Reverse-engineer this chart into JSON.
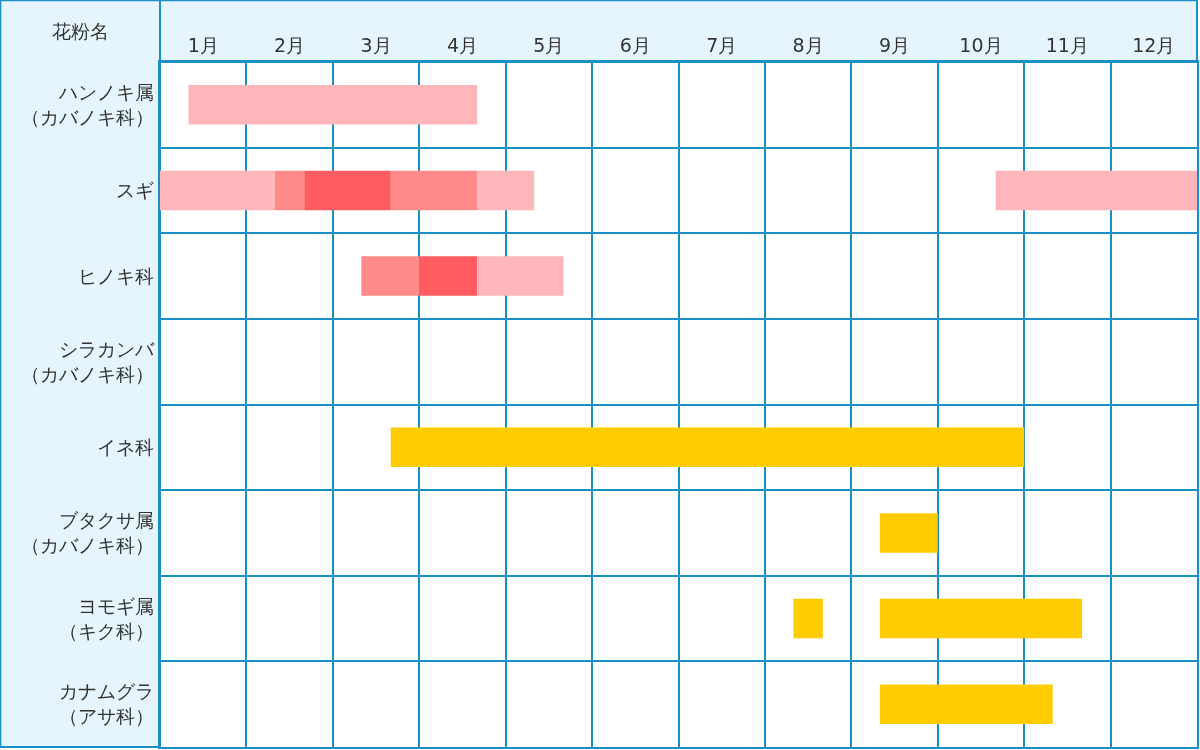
{
  "chart_data": {
    "type": "bar",
    "orientation": "horizontal",
    "ylabel": "花粉名",
    "categories": [
      "ハンノキ属（カバノキ科）",
      "スギ",
      "ヒノキ科",
      "シラカンバ（カバノキ科）",
      "イネ科",
      "ブタクサ属（カバノキ科）",
      "ヨモギ属（キク科）",
      "カナムグラ（アサ科）"
    ],
    "series": [
      {
        "color": "#ffb6bb",
        "base": [
          0.33,
          0,
          3.67,
          null,
          null,
          null,
          null,
          null
        ],
        "values": [
          3.34,
          1.33,
          1.0,
          null,
          null,
          null,
          null,
          null
        ]
      },
      {
        "color": "#ffb6bb",
        "base": [
          null,
          3.67,
          null,
          null,
          null,
          null,
          null,
          null
        ],
        "values": [
          null,
          0.66,
          null,
          null,
          null,
          null,
          null,
          null
        ]
      },
      {
        "color": "#ffb6bb",
        "base": [
          null,
          9.67,
          null,
          null,
          null,
          null,
          null,
          null
        ],
        "values": [
          null,
          2.33,
          null,
          null,
          null,
          null,
          null,
          null
        ]
      },
      {
        "color": "#ff8a8a",
        "base": [
          null,
          1.33,
          2.33,
          null,
          null,
          null,
          null,
          null
        ],
        "values": [
          null,
          0.34,
          0.67,
          null,
          null,
          null,
          null,
          null
        ]
      },
      {
        "color": "#ff8a8a",
        "base": [
          null,
          2.67,
          null,
          null,
          null,
          null,
          null,
          null
        ],
        "values": [
          null,
          1.0,
          null,
          null,
          null,
          null,
          null,
          null
        ]
      },
      {
        "color": "#ff5c62",
        "base": [
          null,
          1.67,
          3.0,
          null,
          null,
          null,
          null,
          null
        ],
        "values": [
          null,
          1.0,
          0.67,
          null,
          null,
          null,
          null,
          null
        ]
      },
      {
        "color": "#ffcc00",
        "base": [
          null,
          null,
          null,
          null,
          2.67,
          8.33,
          7.33,
          8.33
        ],
        "values": [
          null,
          null,
          null,
          null,
          7.33,
          0.67,
          0.34,
          2.0
        ]
      },
      {
        "color": "#ffcc00",
        "base": [
          null,
          null,
          null,
          null,
          null,
          null,
          8.33,
          null
        ],
        "values": [
          null,
          null,
          null,
          null,
          null,
          null,
          2.34,
          null
        ]
      }
    ],
    "xlim": [
      0,
      12
    ],
    "xticks": [
      {
        "value": 0,
        "label": null
      },
      {
        "value": 0.5,
        "label": "1月"
      },
      {
        "value": 1,
        "label": null
      },
      {
        "value": 1.5,
        "label": "2月"
      },
      {
        "value": 2,
        "label": null
      },
      {
        "value": 2.5,
        "label": "3月"
      },
      {
        "value": 3,
        "label": null
      },
      {
        "value": 3.5,
        "label": "4月"
      },
      {
        "value": 4,
        "label": null
      },
      {
        "value": 4.5,
        "label": "5月"
      },
      {
        "value": 5,
        "label": null
      },
      {
        "value": 5.5,
        "label": "6月"
      },
      {
        "value": 6,
        "label": null
      },
      {
        "value": 6.5,
        "label": "7月"
      },
      {
        "value": 7,
        "label": null
      },
      {
        "value": 7.5,
        "label": "8月"
      },
      {
        "value": 8,
        "label": null
      },
      {
        "value": 8.5,
        "label": "9月"
      },
      {
        "value": 9,
        "label": null
      },
      {
        "value": 9.5,
        "label": "10月"
      },
      {
        "value": 10,
        "label": null
      },
      {
        "value": 10.5,
        "label": "11月"
      },
      {
        "value": 11,
        "label": null
      },
      {
        "value": 11.5,
        "label": "12月"
      },
      {
        "value": 12,
        "label": null
      }
    ],
    "grid": true
  }
}
